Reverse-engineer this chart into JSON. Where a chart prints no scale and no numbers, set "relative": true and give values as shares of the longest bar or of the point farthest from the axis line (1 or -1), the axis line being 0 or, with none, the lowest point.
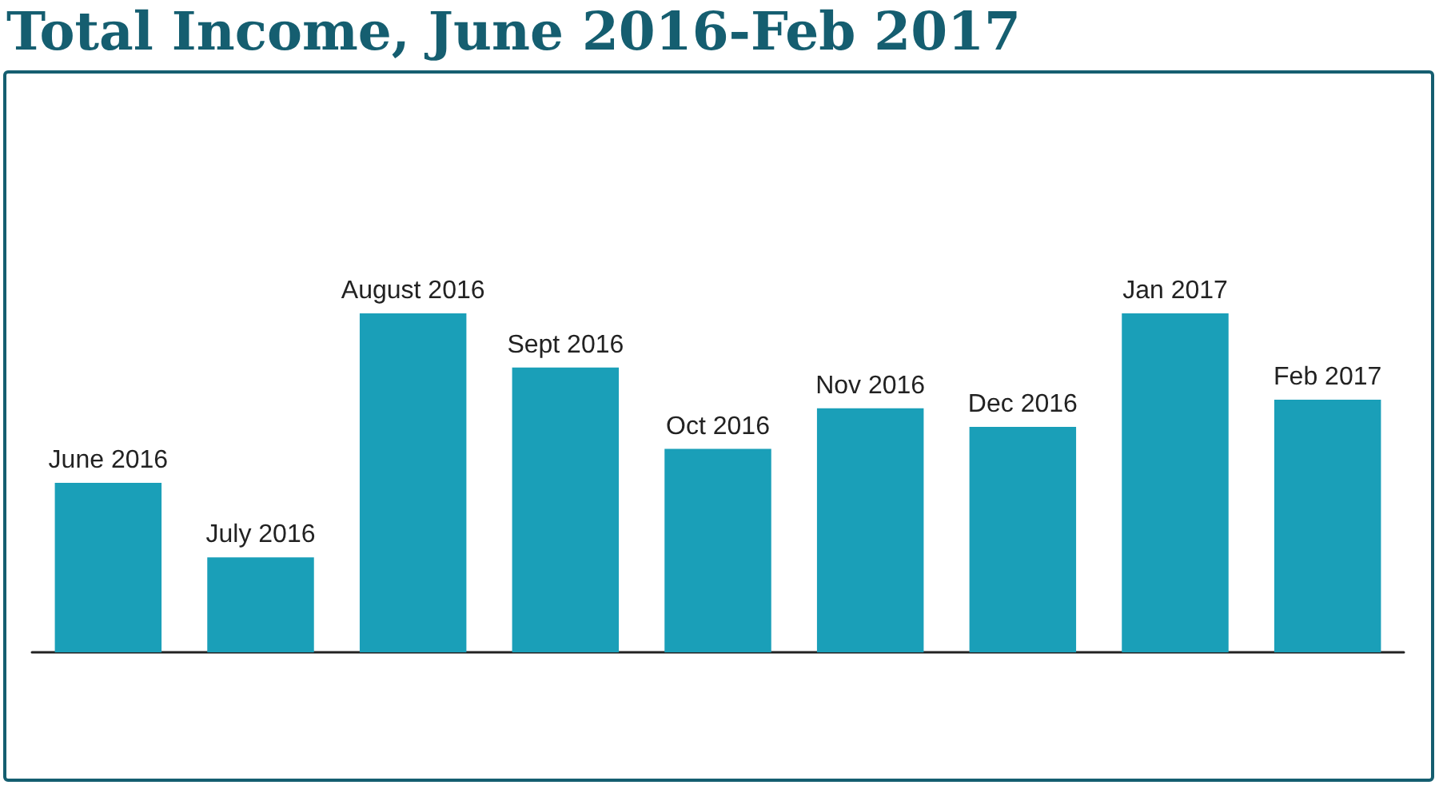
{
  "chart_data": {
    "type": "bar",
    "title": "Total Income, June 2016-Feb 2017",
    "relative": true,
    "categories": [
      "June 2016",
      "July 2016",
      "August 2016",
      "Sept 2016",
      "Oct 2016",
      "Nov 2016",
      "Dec 2016",
      "Jan 2017",
      "Feb 2017"
    ],
    "values": [
      0.5,
      0.28,
      1,
      0.84,
      0.6,
      0.72,
      0.665,
      1,
      0.745
    ],
    "color": "#1a9fb8"
  }
}
